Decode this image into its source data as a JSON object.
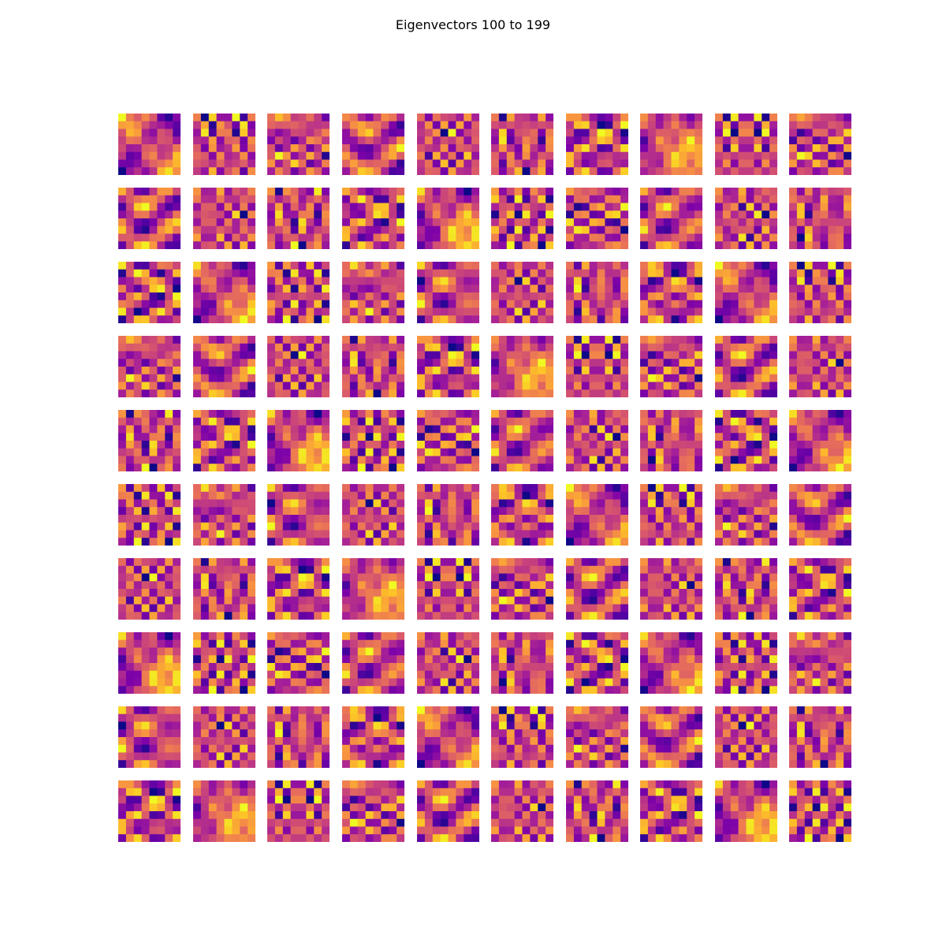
{
  "figure": {
    "title": "Eigenvectors 100 to 199"
  },
  "chart_data": {
    "type": "heatmap",
    "title": "Eigenvectors 100 to 199",
    "colormap": "plasma",
    "grid_rows": 10,
    "grid_cols": 10,
    "eigenvector_range": [
      100,
      199
    ],
    "image_size": [
      8,
      8
    ],
    "axes": "off",
    "colors": {
      "background": "#ffffff",
      "neutral": "#cc4778",
      "low": "#0d0887",
      "high": "#f0f921"
    }
  }
}
